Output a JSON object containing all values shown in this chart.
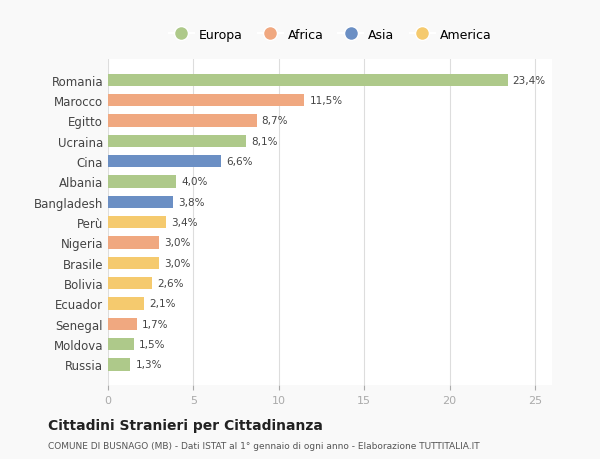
{
  "countries": [
    "Romania",
    "Marocco",
    "Egitto",
    "Ucraina",
    "Cina",
    "Albania",
    "Bangladesh",
    "Perù",
    "Nigeria",
    "Brasile",
    "Bolivia",
    "Ecuador",
    "Senegal",
    "Moldova",
    "Russia"
  ],
  "values": [
    23.4,
    11.5,
    8.7,
    8.1,
    6.6,
    4.0,
    3.8,
    3.4,
    3.0,
    3.0,
    2.6,
    2.1,
    1.7,
    1.5,
    1.3
  ],
  "labels": [
    "23,4%",
    "11,5%",
    "8,7%",
    "8,1%",
    "6,6%",
    "4,0%",
    "3,8%",
    "3,4%",
    "3,0%",
    "3,0%",
    "2,6%",
    "2,1%",
    "1,7%",
    "1,5%",
    "1,3%"
  ],
  "continents": [
    "Europa",
    "Africa",
    "Africa",
    "Europa",
    "Asia",
    "Europa",
    "Asia",
    "America",
    "Africa",
    "America",
    "America",
    "America",
    "Africa",
    "Europa",
    "Europa"
  ],
  "colors": {
    "Europa": "#aec98a",
    "Africa": "#f0a880",
    "Asia": "#6b8fc4",
    "America": "#f5ca6e"
  },
  "legend_order": [
    "Europa",
    "Africa",
    "Asia",
    "America"
  ],
  "title": "Cittadini Stranieri per Cittadinanza",
  "subtitle": "COMUNE DI BUSNAGO (MB) - Dati ISTAT al 1° gennaio di ogni anno - Elaborazione TUTTITALIA.IT",
  "xlim": [
    0,
    26
  ],
  "xticks": [
    0,
    5,
    10,
    15,
    20,
    25
  ],
  "background_color": "#f9f9f9",
  "bar_background": "#ffffff"
}
